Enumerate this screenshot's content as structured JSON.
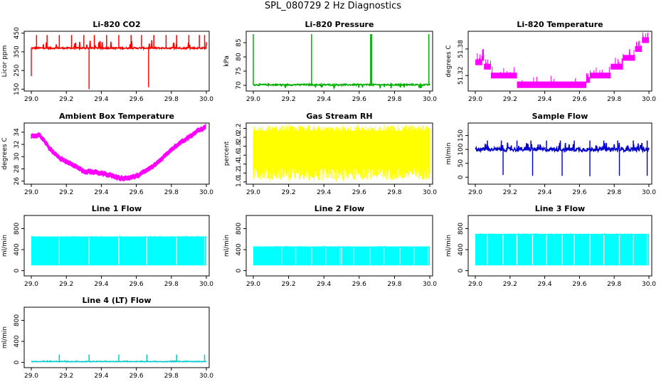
{
  "page": {
    "title": "SPL_080729  2 Hz Diagnostics"
  },
  "chart_data": [
    {
      "type": "line",
      "title": "Li-820 CO2",
      "xlabel": "",
      "ylabel": "Licor ppm",
      "color": "#ff0000",
      "style": "co2",
      "xlim": [
        29.0,
        30.0
      ],
      "ylim": [
        140,
        460
      ],
      "baseline": 370,
      "noise": 4,
      "spikes_up": [
        29.03,
        29.09,
        29.16,
        29.23,
        29.3,
        29.36,
        29.43,
        29.5,
        29.57,
        29.63,
        29.7,
        29.77,
        29.83,
        29.9,
        29.96,
        29.99
      ],
      "spike_up_value": 440,
      "dips": [
        {
          "x": 29.0,
          "v": 220
        },
        {
          "x": 29.33,
          "v": 150
        },
        {
          "x": 29.67,
          "v": 160
        }
      ],
      "xticks": [
        "29.0",
        "29.2",
        "29.4",
        "29.6",
        "29.8",
        "30.0"
      ],
      "yticks": [
        "150",
        "250",
        "350",
        "450"
      ]
    },
    {
      "type": "line",
      "title": "Li-820 Pressure",
      "xlabel": "",
      "ylabel": "kPa",
      "color": "#00b000",
      "style": "pressure",
      "xlim": [
        29.0,
        30.0
      ],
      "ylim": [
        68,
        89
      ],
      "baseline": 70.2,
      "noise": 0.25,
      "spikes_up": [
        29.0,
        29.33,
        29.665,
        29.67,
        29.995
      ],
      "spike_up_value": 88,
      "xticks": [
        "29.0",
        "29.2",
        "29.4",
        "29.6",
        "29.8",
        "30.0"
      ],
      "yticks": [
        "70",
        "75",
        "80",
        "85"
      ]
    },
    {
      "type": "line",
      "title": "Li-820 Temperature",
      "xlabel": "",
      "ylabel": "degrees C",
      "color": "#ff00ff",
      "style": "temperature",
      "xlim": [
        29.0,
        30.0
      ],
      "ylim": [
        51.285,
        51.42
      ],
      "levels": [
        [
          29.0,
          51.35
        ],
        [
          29.04,
          51.36
        ],
        [
          29.05,
          51.34
        ],
        [
          29.09,
          51.32
        ],
        [
          29.24,
          51.3
        ],
        [
          29.64,
          51.31
        ],
        [
          29.66,
          51.32
        ],
        [
          29.78,
          51.34
        ],
        [
          29.85,
          51.36
        ],
        [
          29.92,
          51.38
        ],
        [
          29.96,
          51.4
        ],
        [
          30.0,
          51.4
        ]
      ],
      "band": 0.013,
      "xticks": [
        "29.0",
        "29.2",
        "29.4",
        "29.6",
        "29.8",
        "30.0"
      ],
      "yticks": [
        "51.32",
        "51.38"
      ]
    },
    {
      "type": "line",
      "title": "Ambient Box Temperature",
      "xlabel": "",
      "ylabel": "degrees C",
      "color": "#ff00ff",
      "style": "curve",
      "xlim": [
        29.0,
        30.0
      ],
      "ylim": [
        25.5,
        35.5
      ],
      "curve": [
        [
          29.0,
          33.3
        ],
        [
          29.05,
          33.5
        ],
        [
          29.1,
          31.5
        ],
        [
          29.15,
          30.0
        ],
        [
          29.2,
          29.2
        ],
        [
          29.25,
          28.5
        ],
        [
          29.3,
          27.6
        ],
        [
          29.35,
          27.5
        ],
        [
          29.4,
          27.3
        ],
        [
          29.45,
          27.0
        ],
        [
          29.5,
          26.5
        ],
        [
          29.55,
          26.5
        ],
        [
          29.6,
          26.8
        ],
        [
          29.65,
          27.6
        ],
        [
          29.7,
          28.5
        ],
        [
          29.75,
          29.8
        ],
        [
          29.8,
          31.2
        ],
        [
          29.85,
          32.3
        ],
        [
          29.9,
          33.2
        ],
        [
          29.95,
          34.2
        ],
        [
          30.0,
          34.9
        ]
      ],
      "band": 0.6,
      "xticks": [
        "29.0",
        "29.2",
        "29.4",
        "29.6",
        "29.8",
        "30.0"
      ],
      "yticks": [
        "26",
        "28",
        "30",
        "32",
        "34"
      ]
    },
    {
      "type": "area",
      "title": "Gas Stream RH",
      "xlabel": "",
      "ylabel": "percent",
      "color": "#ffff00",
      "style": "noiseband",
      "xlim": [
        29.0,
        30.0
      ],
      "ylim": [
        0.95,
        2.32
      ],
      "band_low": 1.05,
      "band_high": 2.25,
      "xticks": [
        "29.0",
        "29.2",
        "29.4",
        "29.6",
        "29.8",
        "30.0"
      ],
      "yticks": [
        "1.0",
        "1.2",
        "1.4",
        "1.6",
        "1.8",
        "2.0",
        "2.2"
      ]
    },
    {
      "type": "line",
      "title": "Sample Flow",
      "xlabel": "",
      "ylabel": "ml/min",
      "color": "#0000cc",
      "style": "flow",
      "xlim": [
        29.0,
        30.0
      ],
      "ylim": [
        -25,
        195
      ],
      "baseline": 100,
      "noise": 7,
      "spikes_up": [
        29.07,
        29.15,
        29.24,
        29.32,
        29.41,
        29.49,
        29.57,
        29.66,
        29.74,
        29.82,
        29.91,
        29.99
      ],
      "spike_up_value": 132,
      "dips": [
        {
          "x": 29.16,
          "v": 8
        },
        {
          "x": 29.33,
          "v": 5
        },
        {
          "x": 29.5,
          "v": 5
        },
        {
          "x": 29.66,
          "v": 3
        },
        {
          "x": 29.83,
          "v": 5
        },
        {
          "x": 29.99,
          "v": 5
        }
      ],
      "xticks": [
        "29.0",
        "29.2",
        "29.4",
        "29.6",
        "29.8",
        "30.0"
      ],
      "yticks": [
        "0",
        "50",
        "100",
        "150"
      ]
    },
    {
      "type": "area",
      "title": "Line 1 Flow",
      "xlabel": "",
      "ylabel": "ml/min",
      "color": "#00ffff",
      "style": "block",
      "xlim": [
        29.0,
        30.0
      ],
      "ylim": [
        -100,
        1050
      ],
      "band_low": 100,
      "band_high": 650,
      "gaps": [
        29.16,
        29.33,
        29.5,
        29.66,
        29.83,
        29.99
      ],
      "xticks": [
        "29.0",
        "29.2",
        "29.4",
        "29.6",
        "29.8",
        "30.0"
      ],
      "yticks": [
        "0",
        "400",
        "800"
      ]
    },
    {
      "type": "area",
      "title": "Line 2 Flow",
      "xlabel": "",
      "ylabel": "ml/min",
      "color": "#00ffff",
      "style": "block",
      "xlim": [
        29.0,
        30.0
      ],
      "ylim": [
        -100,
        1050
      ],
      "band_low": 100,
      "band_high": 460,
      "gaps": [
        29.16,
        29.24,
        29.33,
        29.41,
        29.49,
        29.5,
        29.57,
        29.66,
        29.74,
        29.83,
        29.91,
        29.99
      ],
      "xticks": [
        "29.0",
        "29.2",
        "29.4",
        "29.6",
        "29.8",
        "30.0"
      ],
      "yticks": [
        "0",
        "400",
        "800"
      ]
    },
    {
      "type": "area",
      "title": "Line 3 Flow",
      "xlabel": "",
      "ylabel": "ml/min",
      "color": "#00ffff",
      "style": "block",
      "xlim": [
        29.0,
        30.0
      ],
      "ylim": [
        -100,
        1050
      ],
      "band_low": 100,
      "band_high": 700,
      "gaps": [
        29.07,
        29.16,
        29.24,
        29.33,
        29.41,
        29.5,
        29.57,
        29.66,
        29.74,
        29.83,
        29.91,
        29.99
      ],
      "xticks": [
        "29.0",
        "29.2",
        "29.4",
        "29.6",
        "29.8",
        "30.0"
      ],
      "yticks": [
        "0",
        "400",
        "800"
      ]
    },
    {
      "type": "line",
      "title": "Line 4 (LT) Flow",
      "xlabel": "",
      "ylabel": "ml/min",
      "color": "#00cccc",
      "style": "flow",
      "xlim": [
        29.0,
        30.0
      ],
      "ylim": [
        -100,
        1050
      ],
      "baseline": 15,
      "noise": 4,
      "spikes_up": [
        29.16,
        29.33,
        29.5,
        29.66,
        29.83,
        29.99
      ],
      "spike_up_value": 150,
      "xticks": [
        "29.0",
        "29.2",
        "29.4",
        "29.6",
        "29.8",
        "30.0"
      ],
      "yticks": [
        "0",
        "400",
        "800"
      ]
    }
  ]
}
